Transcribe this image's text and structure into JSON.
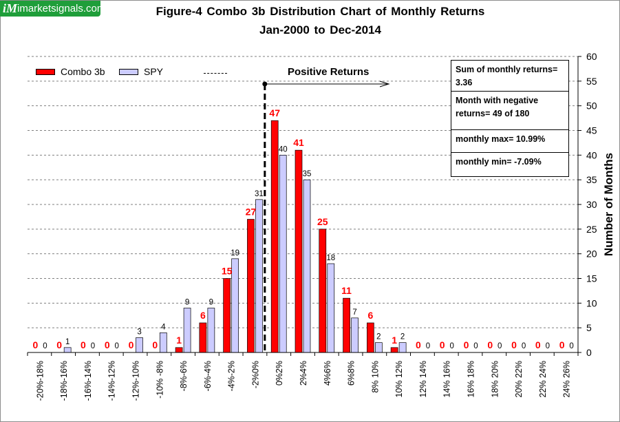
{
  "logo": {
    "mark": "iM",
    "site": "imarketsignals.com"
  },
  "title": "Figure-4   Combo 3b  Distribution  Chart of Monthly Returns",
  "subtitle": "Jan-2000 to Dec-2014",
  "colors": {
    "combo": "#ff0000",
    "spy": "#ccccff",
    "combo_label": "#ff0000",
    "grid": "#7f7f7f",
    "logo_bg": "#1f9e3a"
  },
  "legend": {
    "combo": "Combo 3b",
    "spy": "SPY"
  },
  "annotation": "Positive Returns",
  "stats": [
    "Sum of monthly returns= 3.36",
    "Month with negative returns=  49 of 180",
    "monthly max= 10.99%",
    "monthly min= -7.09%"
  ],
  "chart_data": {
    "type": "bar",
    "title": "Figure-4   Combo 3b  Distribution  Chart of Monthly Returns",
    "subtitle": "Jan-2000 to Dec-2014",
    "ylabel": "Number of Months",
    "xlabel": "",
    "ylim": [
      0,
      60
    ],
    "yticks": [
      0,
      5,
      10,
      15,
      20,
      25,
      30,
      35,
      40,
      45,
      50,
      55,
      60
    ],
    "y_axis_side": "right",
    "grid": true,
    "legend_position": "top-left",
    "categories": [
      "-20%-18%",
      "-18%-16%",
      "-16%-14%",
      "-14%-12%",
      "-12%-10%",
      "-10% -8%",
      "-8%-6%",
      "-6%-4%",
      "-4%-2%",
      "-2%0%",
      "0%2%",
      "2%4%",
      "4%6%",
      "6%8%",
      "8% 10%",
      "10% 12%",
      "12% 14%",
      "14% 16%",
      "16% 18%",
      "18% 20%",
      "20% 22%",
      "22% 24%",
      "24% 26%"
    ],
    "series": [
      {
        "name": "Combo 3b",
        "values": [
          0,
          0,
          0,
          0,
          0,
          0,
          1,
          6,
          15,
          27,
          47,
          41,
          25,
          11,
          6,
          1,
          0,
          0,
          0,
          0,
          0,
          0,
          0
        ]
      },
      {
        "name": "SPY",
        "values": [
          0,
          1,
          0,
          0,
          3,
          4,
          9,
          9,
          19,
          31,
          40,
          35,
          18,
          7,
          2,
          2,
          0,
          0,
          0,
          0,
          0,
          0,
          0
        ]
      }
    ],
    "divider_category_index": 10
  }
}
